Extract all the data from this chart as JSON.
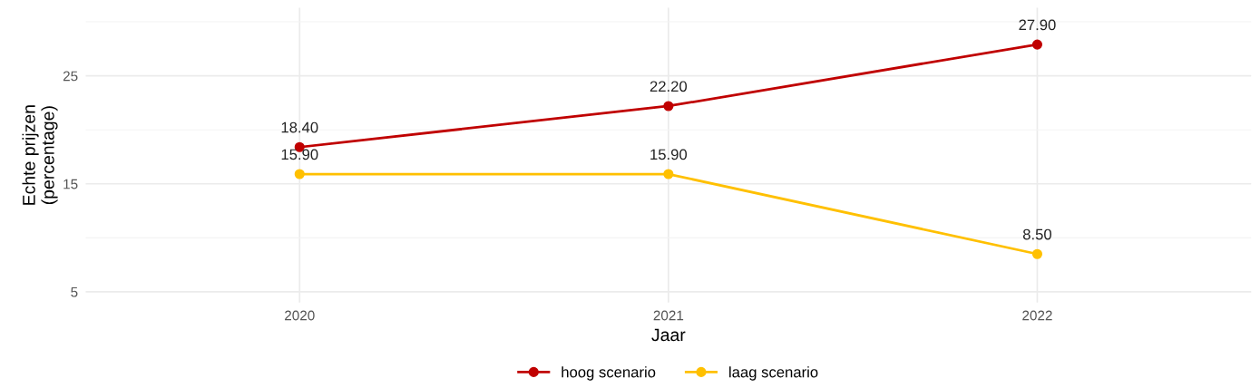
{
  "chart_data": {
    "type": "line",
    "xlabel": "Jaar",
    "ylabel": "Echte prijzen\n(percentage)",
    "categories": [
      "2020",
      "2021",
      "2022"
    ],
    "series": [
      {
        "name": "hoog scenario",
        "color": "#c00000",
        "values": [
          18.4,
          22.2,
          27.9
        ],
        "value_labels": [
          "18.40",
          "22.20",
          "27.90"
        ]
      },
      {
        "name": "laag scenario",
        "color": "#ffc000",
        "values": [
          15.9,
          15.9,
          8.5
        ],
        "value_labels": [
          "15.90",
          "15.90",
          "8.50"
        ]
      }
    ],
    "ylim": [
      4,
      31.3
    ],
    "yticks": [
      5,
      15,
      25
    ],
    "grid": true,
    "legend": "bottom",
    "marker": "circle",
    "line_style": "solid"
  }
}
